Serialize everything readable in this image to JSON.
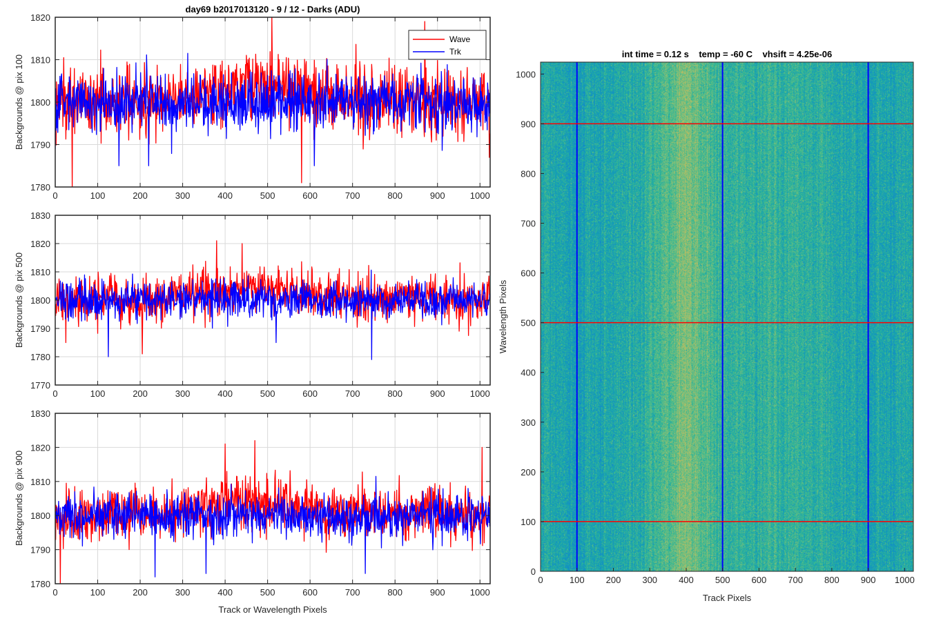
{
  "figure_title": "day69 b2017013120 - 9 / 12 - Darks (ADU)",
  "colors": {
    "wave": "#ff0000",
    "trk": "#0000ff",
    "grid": "#d9d9d9",
    "axes": "#262626"
  },
  "chart_data": [
    {
      "type": "line",
      "title": "day69 b2017013120 - 9 / 12 - Darks (ADU)",
      "xlabel": "",
      "ylabel": "Backgrounds @ pix 100",
      "xlim": [
        0,
        1024
      ],
      "ylim": [
        1780,
        1820
      ],
      "x_ticks": [
        0,
        100,
        200,
        300,
        400,
        500,
        600,
        700,
        800,
        900,
        1000
      ],
      "y_ticks": [
        1780,
        1790,
        1800,
        1810,
        1820
      ],
      "grid": true,
      "legend": {
        "location": "top-right",
        "entries": [
          "Wave",
          "Trk"
        ]
      },
      "series": [
        {
          "name": "Wave",
          "color": "#ff0000",
          "n_points": 1024,
          "mean": 1800,
          "noise_std": 4.0,
          "mean_profile": [
            [
              0,
              1800
            ],
            [
              250,
              1800.5
            ],
            [
              350,
              1802
            ],
            [
              450,
              1805
            ],
            [
              550,
              1803
            ],
            [
              650,
              1801
            ],
            [
              1024,
              1800
            ]
          ],
          "extremes": [
            [
              40,
              1780
            ],
            [
              510,
              1820
            ],
            [
              580,
              1781
            ],
            [
              870,
              1819
            ]
          ]
        },
        {
          "name": "Trk",
          "color": "#0000ff",
          "n_points": 1024,
          "mean": 1800,
          "noise_std": 3.3,
          "extremes": [
            [
              0,
              1789
            ],
            [
              150,
              1785
            ],
            [
              220,
              1785
            ],
            [
              610,
              1785
            ]
          ]
        }
      ]
    },
    {
      "type": "line",
      "title": "",
      "xlabel": "",
      "ylabel": "Backgrounds @ pix 500",
      "xlim": [
        0,
        1024
      ],
      "ylim": [
        1770,
        1830
      ],
      "x_ticks": [
        0,
        100,
        200,
        300,
        400,
        500,
        600,
        700,
        800,
        900,
        1000
      ],
      "y_ticks": [
        1770,
        1780,
        1790,
        1800,
        1810,
        1820,
        1830
      ],
      "grid": true,
      "series": [
        {
          "name": "Wave",
          "color": "#ff0000",
          "n_points": 1024,
          "mean": 1800,
          "noise_std": 4.0,
          "mean_profile": [
            [
              0,
              1799
            ],
            [
              250,
              1800
            ],
            [
              350,
              1803
            ],
            [
              450,
              1805
            ],
            [
              550,
              1804
            ],
            [
              650,
              1801
            ],
            [
              1024,
              1800
            ]
          ],
          "extremes": [
            [
              25,
              1785
            ],
            [
              205,
              1781
            ],
            [
              380,
              1821
            ],
            [
              440,
              1820
            ]
          ]
        },
        {
          "name": "Trk",
          "color": "#0000ff",
          "n_points": 1024,
          "mean": 1800,
          "noise_std": 3.2,
          "extremes": [
            [
              125,
              1780
            ],
            [
              745,
              1779
            ],
            [
              520,
              1785
            ]
          ]
        }
      ]
    },
    {
      "type": "line",
      "title": "",
      "xlabel": "Track or Wavelength Pixels",
      "ylabel": "Backgrounds @ pix 900",
      "xlim": [
        0,
        1024
      ],
      "ylim": [
        1780,
        1830
      ],
      "x_ticks": [
        0,
        100,
        200,
        300,
        400,
        500,
        600,
        700,
        800,
        900,
        1000
      ],
      "y_ticks": [
        1780,
        1790,
        1800,
        1810,
        1820,
        1830
      ],
      "grid": true,
      "series": [
        {
          "name": "Wave",
          "color": "#ff0000",
          "n_points": 1024,
          "mean": 1800,
          "noise_std": 4.0,
          "mean_profile": [
            [
              0,
              1799.5
            ],
            [
              250,
              1800
            ],
            [
              350,
              1803
            ],
            [
              450,
              1804.5
            ],
            [
              550,
              1803
            ],
            [
              650,
              1801
            ],
            [
              1024,
              1800
            ]
          ],
          "extremes": [
            [
              12,
              1780
            ],
            [
              400,
              1821
            ],
            [
              470,
              1822
            ],
            [
              1005,
              1820
            ]
          ]
        },
        {
          "name": "Trk",
          "color": "#0000ff",
          "n_points": 1024,
          "mean": 1800,
          "noise_std": 3.3,
          "extremes": [
            [
              235,
              1782
            ],
            [
              355,
              1783
            ],
            [
              730,
              1783
            ]
          ]
        }
      ]
    },
    {
      "type": "heatmap",
      "title": "int time = 0.12 s    temp = -60 C    vhsift = 4.25e-06",
      "xlabel": "Track Pixels",
      "ylabel": "Wavelength Pixels",
      "xlim": [
        0,
        1024
      ],
      "ylim": [
        0,
        1024
      ],
      "x_ticks": [
        0,
        100,
        200,
        300,
        400,
        500,
        600,
        700,
        800,
        900,
        1000
      ],
      "y_ticks": [
        0,
        100,
        200,
        300,
        400,
        500,
        600,
        700,
        800,
        900,
        1000
      ],
      "colormap": "parula",
      "column_intensity_profile": [
        [
          0,
          0.5
        ],
        [
          100,
          0.45
        ],
        [
          200,
          0.48
        ],
        [
          330,
          0.55
        ],
        [
          400,
          0.66
        ],
        [
          460,
          0.58
        ],
        [
          520,
          0.52
        ],
        [
          650,
          0.53
        ],
        [
          800,
          0.5
        ],
        [
          900,
          0.46
        ],
        [
          1024,
          0.5
        ]
      ],
      "vertical_lines": {
        "color": "#0000ff",
        "x": [
          100,
          500,
          900
        ]
      },
      "horizontal_lines": {
        "color": "#ff0000",
        "y": [
          100,
          500,
          900
        ]
      }
    }
  ]
}
